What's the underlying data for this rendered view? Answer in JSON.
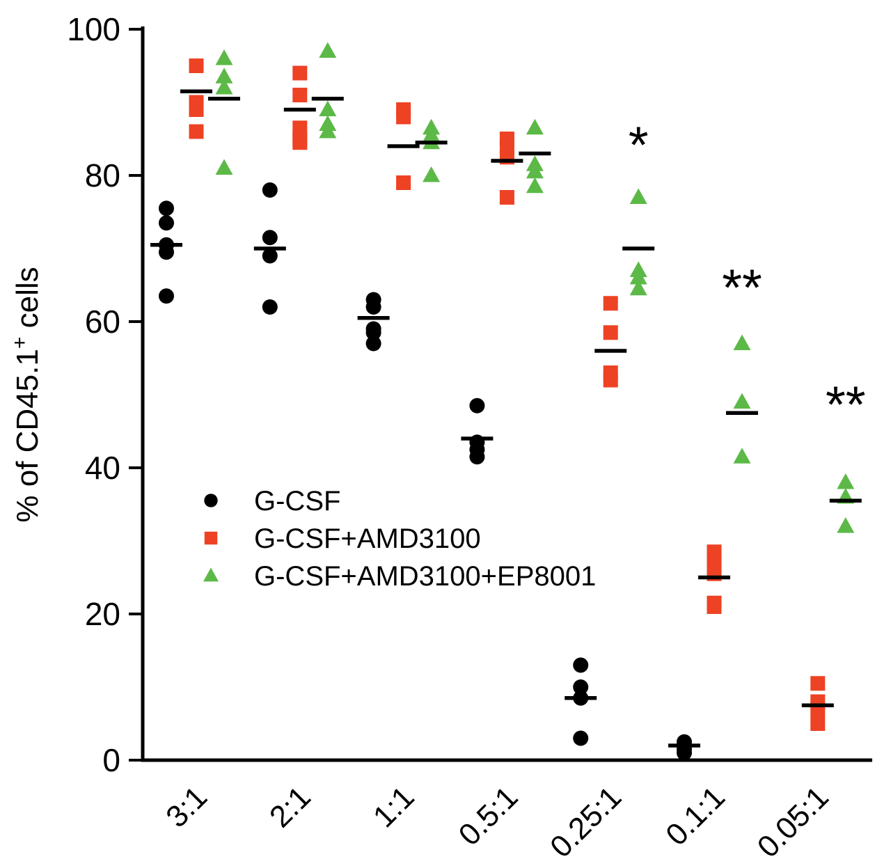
{
  "figure": {
    "background": "#ffffff",
    "axis_color": "#000000"
  },
  "chart_data": {
    "type": "scatter",
    "title": "",
    "xlabel": "",
    "ylabel": "% of CD45.1+ cells",
    "ylabel_parts": {
      "pre": "% of CD45.1",
      "sup": "+",
      "post": " cells"
    },
    "ylim": [
      0,
      100
    ],
    "yticks": [
      0,
      20,
      40,
      60,
      80,
      100
    ],
    "grid": false,
    "categories": [
      "3:1",
      "2:1",
      "1:1",
      "0.5:1",
      "0.25:1",
      "0.1:1",
      "0.05:1"
    ],
    "series": [
      {
        "name": "G-CSF",
        "marker": "circle",
        "color": "#000000",
        "points": [
          [
            75.5,
            73.5,
            70.5,
            69.5,
            63.5
          ],
          [
            78,
            71.5,
            69,
            62
          ],
          [
            63,
            62,
            59,
            58.5,
            57
          ],
          [
            48.5,
            43.5,
            42.5,
            41.5
          ],
          [
            13,
            10,
            8.5,
            3
          ],
          [
            2.5,
            2,
            1.5,
            1
          ],
          []
        ],
        "means": [
          70.5,
          70,
          60.5,
          44,
          8.5,
          2,
          null
        ]
      },
      {
        "name": "G-CSF+AMD3100",
        "marker": "square",
        "color": "#ee4224",
        "points": [
          [
            95,
            90,
            89,
            86
          ],
          [
            94,
            91,
            86.5,
            85,
            84.5
          ],
          [
            89,
            88,
            79
          ],
          [
            85,
            84,
            82.5,
            77
          ],
          [
            62.5,
            58.5,
            53,
            52
          ],
          [
            28.5,
            27,
            25.5,
            21.5,
            21
          ],
          [
            10.5,
            8,
            7,
            5
          ]
        ],
        "means": [
          91.5,
          89,
          84,
          82,
          56,
          25,
          7.5
        ]
      },
      {
        "name": "G-CSF+AMD3100+EP8001",
        "marker": "triangle",
        "color": "#5cb947",
        "points": [
          [
            96,
            93.5,
            92,
            81
          ],
          [
            97,
            89,
            87,
            86
          ],
          [
            86.5,
            85.5,
            84.5,
            80
          ],
          [
            86.5,
            81.5,
            80.5,
            78.5
          ],
          [
            77,
            67,
            66,
            64.5
          ],
          [
            57,
            49,
            41.5
          ],
          [
            38,
            36,
            32
          ]
        ],
        "means": [
          90.5,
          90.5,
          84.5,
          83,
          70,
          47.5,
          35.5
        ]
      }
    ],
    "annotations": [
      {
        "text": "*",
        "category": "0.25:1",
        "y": 85
      },
      {
        "text": "**",
        "category": "0.1:1",
        "y": 65.5
      },
      {
        "text": "**",
        "category": "0.05:1",
        "y": 49.5
      }
    ],
    "legend": {
      "position": "inside-left-middle",
      "entries": [
        "G-CSF",
        "G-CSF+AMD3100",
        "G-CSF+AMD3100+EP8001"
      ]
    }
  }
}
